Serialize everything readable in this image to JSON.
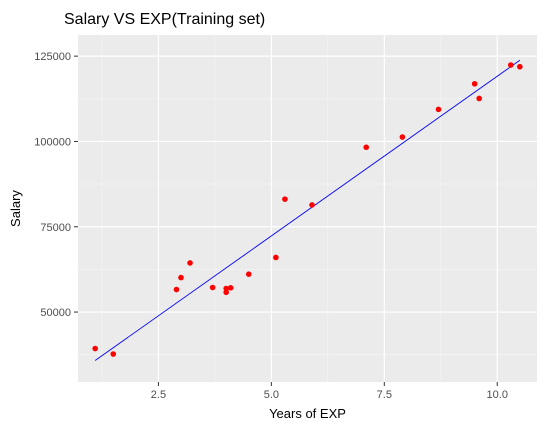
{
  "chart_data": {
    "type": "scatter",
    "title": "Salary VS EXP(Training set)",
    "xlabel": "Years of EXP",
    "ylabel": "Salary",
    "xlim": [
      0.72,
      10.88
    ],
    "ylim": [
      29500,
      131200
    ],
    "x_ticks": [
      2.5,
      5.0,
      7.5,
      10.0
    ],
    "x_tick_labels": [
      "2.5",
      "5.0",
      "7.5",
      "10.0"
    ],
    "y_ticks": [
      50000,
      75000,
      100000,
      125000
    ],
    "y_tick_labels": [
      "50000",
      "75000",
      "100000",
      "125000"
    ],
    "grid": true,
    "series": [
      {
        "kind": "points",
        "color": "#ff0000",
        "points": [
          {
            "x": 1.1,
            "y": 39300
          },
          {
            "x": 1.5,
            "y": 37700
          },
          {
            "x": 2.9,
            "y": 56600
          },
          {
            "x": 3.0,
            "y": 60100
          },
          {
            "x": 3.2,
            "y": 64400
          },
          {
            "x": 3.7,
            "y": 57200
          },
          {
            "x": 4.0,
            "y": 55800
          },
          {
            "x": 4.0,
            "y": 56900
          },
          {
            "x": 4.1,
            "y": 57100
          },
          {
            "x": 4.5,
            "y": 61100
          },
          {
            "x": 5.1,
            "y": 66000
          },
          {
            "x": 5.3,
            "y": 83100
          },
          {
            "x": 5.9,
            "y": 81400
          },
          {
            "x": 7.1,
            "y": 98300
          },
          {
            "x": 7.9,
            "y": 101300
          },
          {
            "x": 8.7,
            "y": 109400
          },
          {
            "x": 9.5,
            "y": 116900
          },
          {
            "x": 9.6,
            "y": 112600
          },
          {
            "x": 10.3,
            "y": 122400
          },
          {
            "x": 10.5,
            "y": 121900
          }
        ]
      },
      {
        "kind": "line",
        "color": "#0000ff",
        "points": [
          {
            "x": 1.1,
            "y": 35800
          },
          {
            "x": 10.5,
            "y": 123800
          }
        ]
      }
    ]
  }
}
